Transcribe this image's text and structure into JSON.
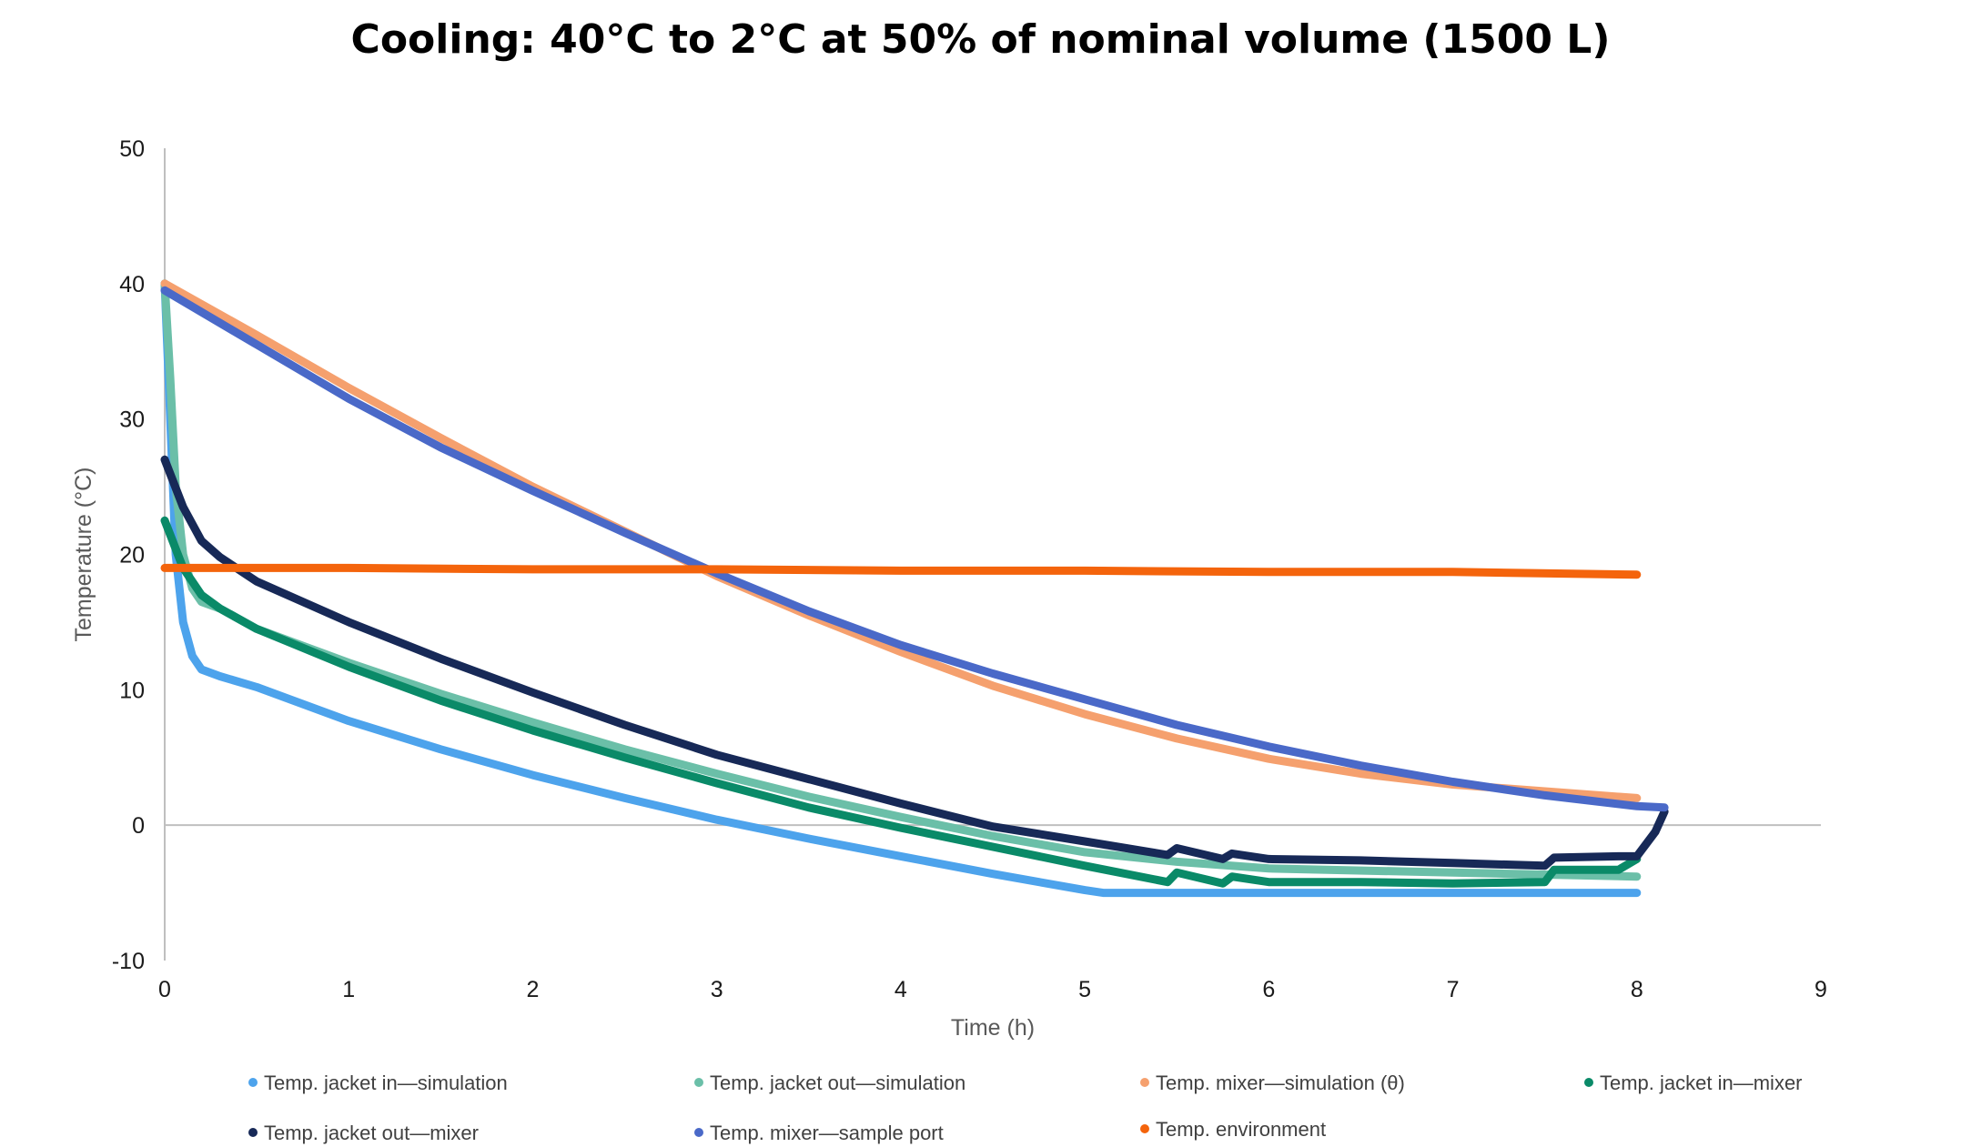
{
  "chart_data": {
    "type": "line",
    "title": "Cooling: 40°C to 2°C at 50% of nominal volume (1500 L)",
    "xlabel": "Time (h)",
    "ylabel": "Temperature (°C)",
    "xlim": [
      0,
      9
    ],
    "ylim": [
      -10,
      50
    ],
    "xticks": [
      0,
      1,
      2,
      3,
      4,
      5,
      6,
      7,
      8,
      9
    ],
    "yticks": [
      -10,
      0,
      10,
      20,
      30,
      40,
      50
    ],
    "grid": false,
    "legend_position": "bottom",
    "series": [
      {
        "name": "Temp. jacket in—simulation",
        "color": "#4da3ec",
        "x": [
          0,
          0.03,
          0.06,
          0.1,
          0.15,
          0.2,
          0.3,
          0.5,
          1,
          1.5,
          2,
          2.5,
          3,
          3.5,
          4,
          4.5,
          5,
          5.1,
          6,
          7,
          8
        ],
        "y": [
          40,
          30,
          20,
          15,
          12.5,
          11.5,
          11,
          10.2,
          7.7,
          5.6,
          3.7,
          2,
          0.4,
          -1,
          -2.3,
          -3.6,
          -4.8,
          -5,
          -5,
          -5,
          -5
        ]
      },
      {
        "name": "Temp. jacket out—simulation",
        "color": "#6bbfa8",
        "x": [
          0,
          0.03,
          0.06,
          0.1,
          0.15,
          0.2,
          0.3,
          0.5,
          1,
          1.5,
          2,
          2.5,
          3,
          3.5,
          4,
          4.5,
          5,
          5.5,
          6,
          7,
          8
        ],
        "y": [
          40,
          33,
          25,
          20,
          17.5,
          16.5,
          16,
          14.5,
          12,
          9.7,
          7.6,
          5.6,
          3.8,
          2.1,
          0.6,
          -0.8,
          -2,
          -2.7,
          -3.2,
          -3.5,
          -3.8
        ]
      },
      {
        "name": "Temp. mixer—simulation (θ)",
        "color": "#f5a06e",
        "x": [
          0,
          0.5,
          1,
          1.5,
          2,
          2.5,
          3,
          3.5,
          4,
          4.5,
          5,
          5.5,
          6,
          6.5,
          7,
          7.5,
          8
        ],
        "y": [
          40,
          36.2,
          32.3,
          28.6,
          25,
          21.7,
          18.4,
          15.5,
          12.8,
          10.3,
          8.2,
          6.4,
          4.9,
          3.8,
          3,
          2.5,
          2
        ]
      },
      {
        "name": "Temp. jacket in—mixer",
        "color": "#0a8a68",
        "x": [
          0,
          0.1,
          0.2,
          0.3,
          0.5,
          1,
          1.5,
          2,
          2.5,
          3,
          3.5,
          4,
          4.5,
          5,
          5.45,
          5.5,
          5.75,
          5.8,
          6,
          6.5,
          7,
          7.5,
          7.55,
          7.9,
          8
        ],
        "y": [
          22.5,
          19,
          17,
          16,
          14.5,
          11.7,
          9.2,
          7,
          5,
          3.1,
          1.3,
          -0.2,
          -1.6,
          -3,
          -4.2,
          -3.5,
          -4.3,
          -3.8,
          -4.2,
          -4.2,
          -4.3,
          -4.2,
          -3.3,
          -3.3,
          -2.5
        ]
      },
      {
        "name": "Temp. jacket out—mixer",
        "color": "#172957",
        "x": [
          0,
          0.1,
          0.2,
          0.3,
          0.5,
          1,
          1.5,
          2,
          2.5,
          3,
          3.5,
          4,
          4.5,
          5,
          5.45,
          5.5,
          5.75,
          5.8,
          6,
          6.5,
          7,
          7.5,
          7.55,
          7.9,
          8,
          8.1,
          8.15
        ],
        "y": [
          27,
          23.5,
          21,
          19.8,
          18,
          15,
          12.3,
          9.8,
          7.4,
          5.2,
          3.4,
          1.6,
          -0.1,
          -1.2,
          -2.2,
          -1.7,
          -2.5,
          -2.1,
          -2.5,
          -2.6,
          -2.8,
          -3,
          -2.4,
          -2.3,
          -2.3,
          -0.5,
          1
        ]
      },
      {
        "name": "Temp. mixer—sample port",
        "color": "#4a69c8",
        "x": [
          0,
          0.5,
          1,
          1.5,
          2,
          2.5,
          3,
          3.5,
          4,
          4.5,
          5,
          5.5,
          6,
          6.5,
          7,
          7.5,
          8,
          8.15
        ],
        "y": [
          39.5,
          35.5,
          31.5,
          27.9,
          24.7,
          21.6,
          18.6,
          15.8,
          13.3,
          11.2,
          9.3,
          7.4,
          5.8,
          4.4,
          3.2,
          2.2,
          1.4,
          1.3
        ]
      },
      {
        "name": "Temp. environment",
        "color": "#f4640c",
        "x": [
          0,
          1,
          2,
          3,
          4,
          5,
          6,
          7,
          8
        ],
        "y": [
          19,
          19,
          18.9,
          18.9,
          18.8,
          18.8,
          18.7,
          18.7,
          18.5
        ]
      }
    ]
  }
}
